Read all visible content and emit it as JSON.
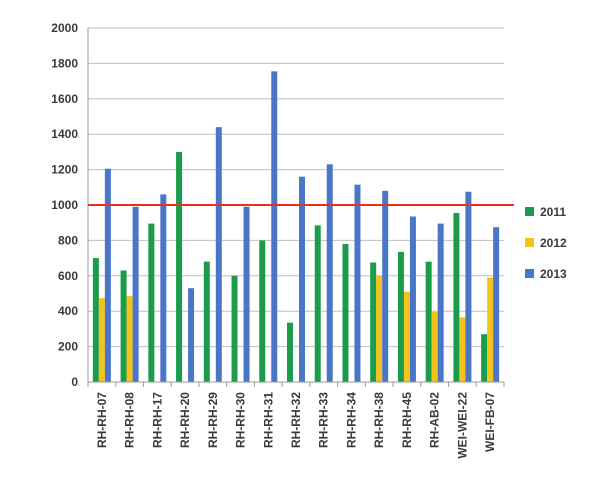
{
  "chart_data": {
    "type": "bar",
    "categories": [
      "RH-RH-07",
      "RH-RH-08",
      "RH-RH-17",
      "RH-RH-20",
      "RH-RH-29",
      "RH-RH-30",
      "RH-RH-31",
      "RH-RH-32",
      "RH-RH-33",
      "RH-RH-34",
      "RH-RH-38",
      "RH-RH-45",
      "RH-AB-02",
      "WEI-WEI-22",
      "WEI-FB-07"
    ],
    "series": [
      {
        "name": "2011",
        "color": "#1a9c4a",
        "values": [
          700,
          630,
          895,
          1300,
          680,
          600,
          800,
          335,
          885,
          780,
          675,
          735,
          680,
          955,
          270
        ]
      },
      {
        "name": "2012",
        "color": "#f5c21b",
        "values": [
          475,
          485,
          null,
          null,
          null,
          null,
          null,
          null,
          null,
          null,
          600,
          510,
          395,
          365,
          590
        ]
      },
      {
        "name": "2013",
        "color": "#4a76c8",
        "values": [
          1205,
          990,
          1060,
          530,
          1440,
          990,
          1755,
          1160,
          1230,
          1115,
          1080,
          935,
          895,
          1075,
          875
        ]
      }
    ],
    "yticks": [
      "0",
      "200",
      "400",
      "600",
      "800",
      "1000",
      "1200",
      "1400",
      "1600",
      "1800",
      "2000"
    ],
    "ylim": [
      0,
      2000
    ],
    "reference_line": {
      "value": 1000,
      "color": "#e8321c"
    },
    "grid": true,
    "legend_position": "right"
  }
}
